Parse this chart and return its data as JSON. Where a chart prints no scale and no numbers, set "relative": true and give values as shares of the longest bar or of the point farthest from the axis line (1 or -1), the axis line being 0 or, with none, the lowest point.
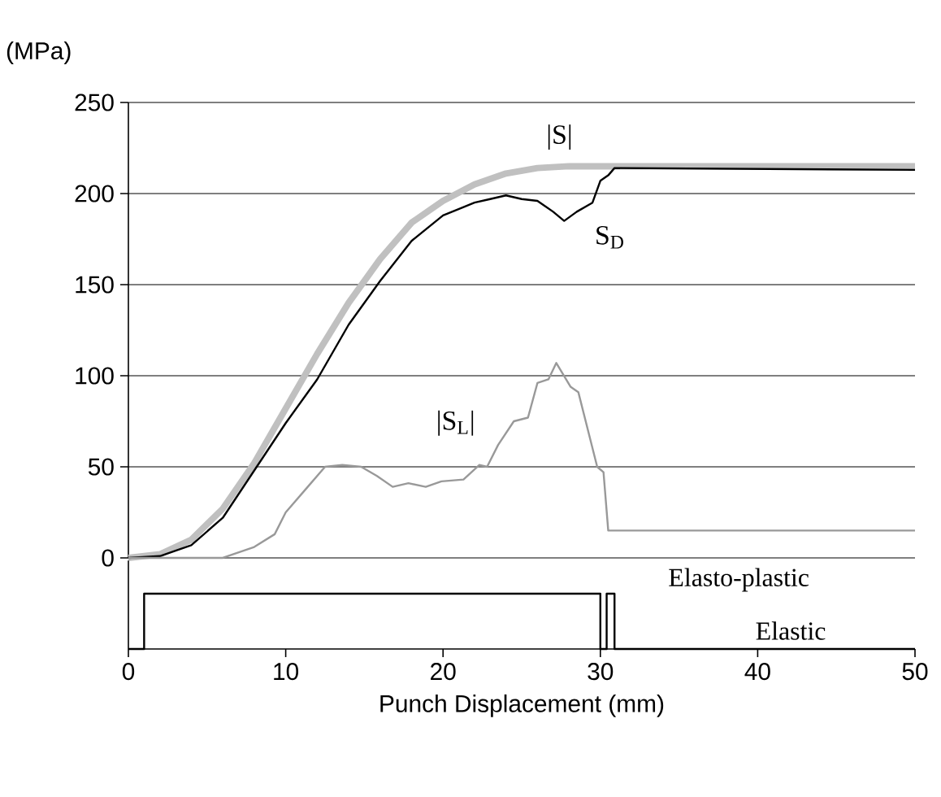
{
  "chart_data": [
    {
      "type": "line",
      "ylabel": "(MPa)",
      "xlim": [
        0,
        50
      ],
      "ylim": [
        0,
        250
      ],
      "yticks": [
        0,
        50,
        100,
        150,
        200,
        250
      ],
      "grid": "y",
      "tick_labels": "y",
      "series": [
        {
          "name": "|S|",
          "color": "#c0c0c0",
          "x": [
            0,
            2,
            4,
            6,
            8,
            10,
            12,
            14,
            16,
            18,
            20,
            22,
            24,
            26,
            28,
            30,
            50
          ],
          "values": [
            0,
            2,
            10,
            27,
            52,
            82,
            112,
            140,
            164,
            184,
            196,
            205,
            211,
            214,
            215,
            215,
            215
          ]
        },
        {
          "name": "S$_{D}$",
          "color": "#000000",
          "x": [
            0,
            2,
            4,
            6,
            8,
            10,
            12,
            14,
            16,
            18,
            20,
            22,
            23,
            24,
            25,
            26,
            27,
            27.7,
            28.5,
            29.5,
            30,
            30.5,
            30.9,
            50
          ],
          "values": [
            0,
            1,
            7,
            22,
            48,
            74,
            98,
            128,
            152,
            174,
            188,
            195,
            197,
            199,
            197,
            196,
            190,
            185,
            190,
            195,
            207,
            210,
            214,
            213
          ]
        },
        {
          "name": "|S$_{L}$|",
          "color": "#999999",
          "x": [
            0,
            6,
            8,
            9.3,
            10,
            11.3,
            12.5,
            13.6,
            14.8,
            15.8,
            16.8,
            17.8,
            18.9,
            19.9,
            21.3,
            22.3,
            22.8,
            23.5,
            24.5,
            25.4,
            26,
            26.7,
            27.2,
            28.1,
            28.6,
            29.8,
            30.2,
            30.5,
            50
          ],
          "values": [
            0,
            0,
            6,
            13,
            25,
            38,
            50,
            51,
            50,
            45,
            39,
            41,
            39,
            42,
            43,
            51,
            50,
            62,
            75,
            77,
            96,
            98,
            107,
            94,
            91,
            50,
            47,
            15,
            15
          ]
        }
      ]
    },
    {
      "type": "step",
      "relative": true,
      "xlabel": "Punch Displacement (mm)",
      "xlim": [
        0,
        50
      ],
      "xticks": [
        0,
        10,
        20,
        30,
        40,
        50
      ],
      "tick_labels": "x",
      "color": "#000000",
      "x": [
        0,
        1,
        30,
        30.4,
        30.9,
        50
      ],
      "values": [
        0,
        1,
        0,
        1,
        0,
        0
      ],
      "annotations": [
        "Elasto-plastic",
        "Elastic"
      ]
    }
  ]
}
